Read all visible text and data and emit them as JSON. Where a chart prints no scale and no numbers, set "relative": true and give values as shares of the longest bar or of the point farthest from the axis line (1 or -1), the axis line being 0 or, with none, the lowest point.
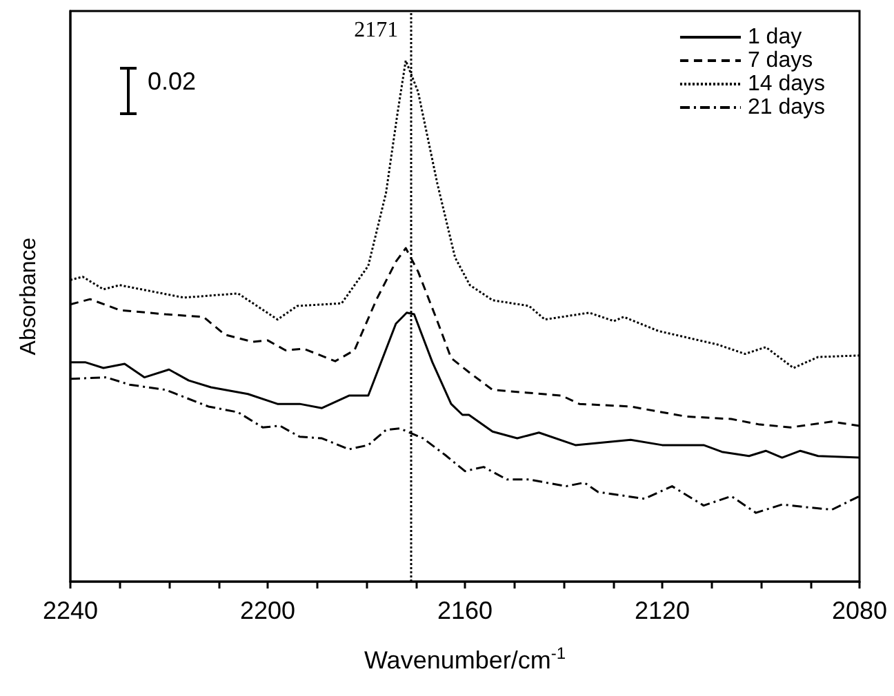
{
  "chart_data": {
    "type": "line",
    "relative": true,
    "xlabel": "Wavenumber/cm$^{-1}$",
    "ylabel": "Absorbance",
    "xlim": [
      2240,
      2080
    ],
    "xticks": [
      2240,
      {
        "value": 2230,
        "label": null
      },
      {
        "value": 2220,
        "label": null
      },
      {
        "value": 2210,
        "label": null
      },
      2200,
      {
        "value": 2190,
        "label": null
      },
      {
        "value": 2180,
        "label": null
      },
      {
        "value": 2170,
        "label": null
      },
      2160,
      {
        "value": 2150,
        "label": null
      },
      {
        "value": 2140,
        "label": null
      },
      {
        "value": 2130,
        "label": null
      },
      2120,
      {
        "value": 2110,
        "label": null
      },
      {
        "value": 2100,
        "label": null
      },
      {
        "value": 2090,
        "label": null
      },
      2080
    ],
    "legend": "top right",
    "grid": false,
    "marker": "none",
    "annotations": [
      "0.02"
    ],
    "ref_lines": [
      {
        "axis": "x",
        "value": 2171,
        "label": "2171",
        "line_style": "dotted",
        "color": "#000000"
      }
    ],
    "series": [
      {
        "name": "1 day",
        "color": "#000000",
        "line_style": "solid",
        "x": [
          2240,
          2237,
          2233.3,
          2229,
          2225,
          2220,
          2216,
          2211.5,
          2204,
          2198,
          2193.5,
          2189,
          2183.5,
          2179.6,
          2174,
          2171.8,
          2170.3,
          2166.6,
          2162.8,
          2160.5,
          2159.2,
          2154.4,
          2149.4,
          2145,
          2137.6,
          2126.4,
          2120,
          2111.6,
          2107.9,
          2102.4,
          2099,
          2095.7,
          2092,
          2088.4,
          2080
        ],
        "values": [
          0.421,
          0.421,
          0.41,
          0.418,
          0.392,
          0.407,
          0.386,
          0.373,
          0.36,
          0.341,
          0.341,
          0.333,
          0.357,
          0.357,
          0.495,
          0.516,
          0.513,
          0.421,
          0.341,
          0.32,
          0.32,
          0.288,
          0.275,
          0.286,
          0.262,
          0.272,
          0.262,
          0.262,
          0.249,
          0.241,
          0.251,
          0.238,
          0.251,
          0.241,
          0.238
        ]
      },
      {
        "name": "7 days",
        "color": "#000000",
        "line_style": "dashed",
        "x": [
          2240,
          2236,
          2230,
          2220.7,
          2213,
          2208.7,
          2203,
          2200,
          2196.4,
          2192.7,
          2186.3,
          2182.4,
          2177.9,
          2174,
          2172,
          2169.5,
          2165.6,
          2162.8,
          2159.2,
          2154.4,
          2140.4,
          2136.8,
          2126.4,
          2115.3,
          2106,
          2100.5,
          2094,
          2085.6,
          2080
        ],
        "values": [
          0.532,
          0.542,
          0.521,
          0.513,
          0.508,
          0.474,
          0.46,
          0.463,
          0.444,
          0.447,
          0.423,
          0.444,
          0.542,
          0.614,
          0.64,
          0.595,
          0.5,
          0.429,
          0.402,
          0.368,
          0.357,
          0.341,
          0.336,
          0.317,
          0.312,
          0.302,
          0.296,
          0.307,
          0.299
        ]
      },
      {
        "name": "14 days",
        "color": "#000000",
        "line_style": "dotted",
        "x": [
          2240,
          2237.5,
          2233.3,
          2230,
          2217,
          2206,
          2198,
          2194,
          2185,
          2179.6,
          2176,
          2173.7,
          2172,
          2169.5,
          2165.6,
          2162,
          2159,
          2154.4,
          2147,
          2143.8,
          2134.8,
          2129.8,
          2127.8,
          2120.8,
          2108.8,
          2103.2,
          2099,
          2093.4,
          2088.4,
          2080
        ],
        "values": [
          0.579,
          0.585,
          0.561,
          0.569,
          0.545,
          0.553,
          0.503,
          0.529,
          0.534,
          0.606,
          0.746,
          0.897,
          1.0,
          0.94,
          0.764,
          0.622,
          0.569,
          0.54,
          0.529,
          0.503,
          0.516,
          0.5,
          0.508,
          0.481,
          0.455,
          0.437,
          0.45,
          0.41,
          0.431,
          0.434
        ]
      },
      {
        "name": "21 days",
        "color": "#000000",
        "line_style": "dashdot",
        "x": [
          2240,
          2232.7,
          2228,
          2220.7,
          2212,
          2206,
          2201,
          2197.5,
          2193.5,
          2189,
          2183.5,
          2179.6,
          2176,
          2173.2,
          2168.5,
          2164,
          2160,
          2156.2,
          2151.5,
          2147,
          2139.5,
          2135.8,
          2133,
          2123.6,
          2118,
          2111.6,
          2106,
          2101,
          2095.7,
          2091,
          2085.6,
          2080
        ],
        "values": [
          0.389,
          0.392,
          0.378,
          0.368,
          0.336,
          0.325,
          0.296,
          0.299,
          0.278,
          0.275,
          0.254,
          0.262,
          0.291,
          0.294,
          0.275,
          0.243,
          0.212,
          0.22,
          0.196,
          0.196,
          0.183,
          0.19,
          0.172,
          0.159,
          0.183,
          0.146,
          0.164,
          0.132,
          0.148,
          0.143,
          0.138,
          0.164
        ]
      }
    ]
  }
}
